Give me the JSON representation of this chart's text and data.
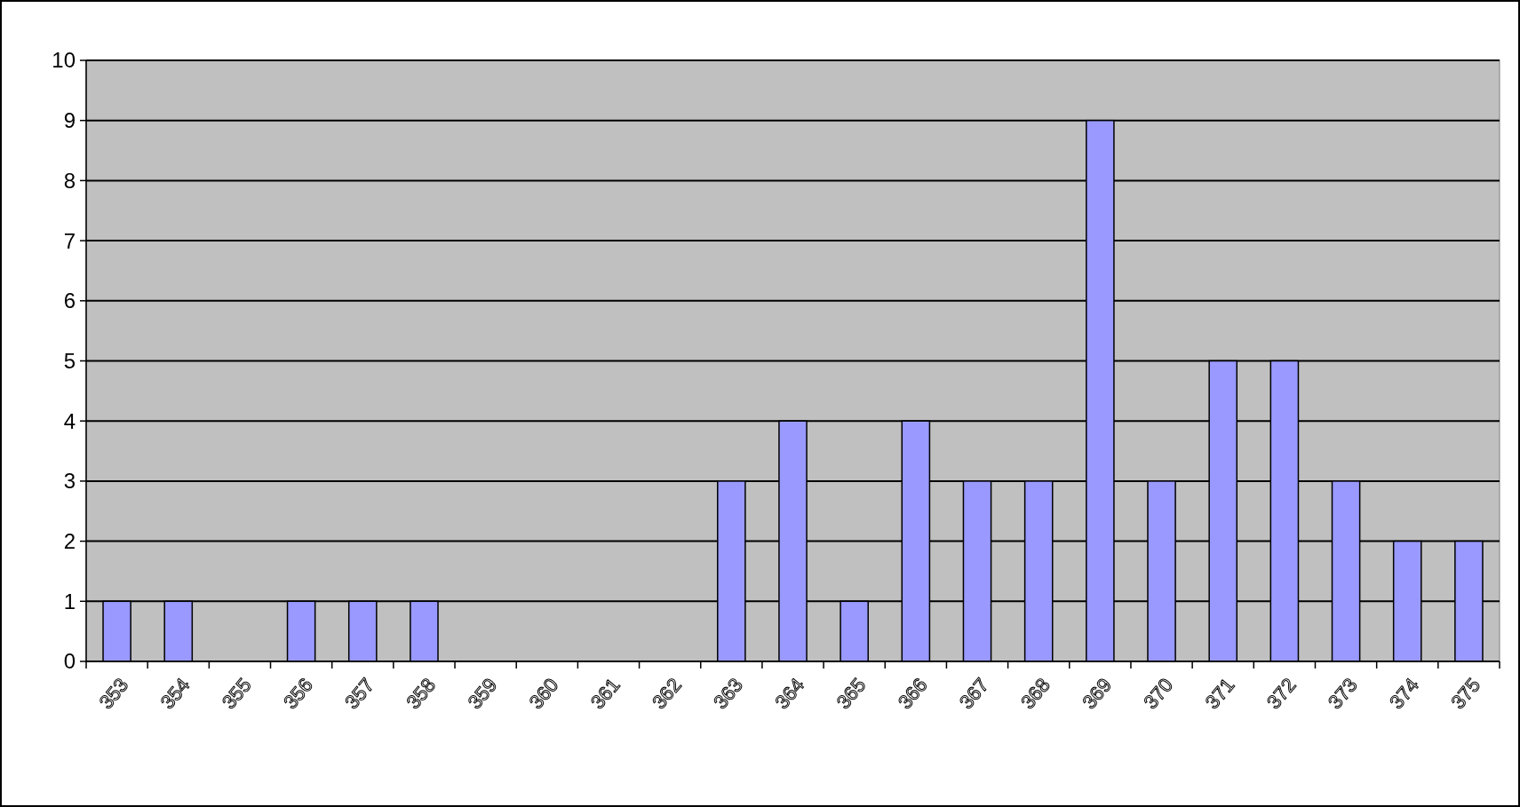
{
  "chart_data": {
    "type": "bar",
    "categories": [
      "353",
      "354",
      "355",
      "356",
      "357",
      "358",
      "359",
      "360",
      "361",
      "362",
      "363",
      "364",
      "365",
      "366",
      "367",
      "368",
      "369",
      "370",
      "371",
      "372",
      "373",
      "374",
      "375"
    ],
    "values": [
      1,
      1,
      0,
      1,
      1,
      1,
      0,
      0,
      0,
      0,
      3,
      4,
      1,
      4,
      3,
      3,
      9,
      3,
      5,
      5,
      3,
      2,
      2
    ],
    "color": "#9999ff",
    "ylim": [
      0,
      10
    ],
    "yticks": [
      0,
      1,
      2,
      3,
      4,
      5,
      6,
      7,
      8,
      9,
      10
    ],
    "grid": "y"
  }
}
